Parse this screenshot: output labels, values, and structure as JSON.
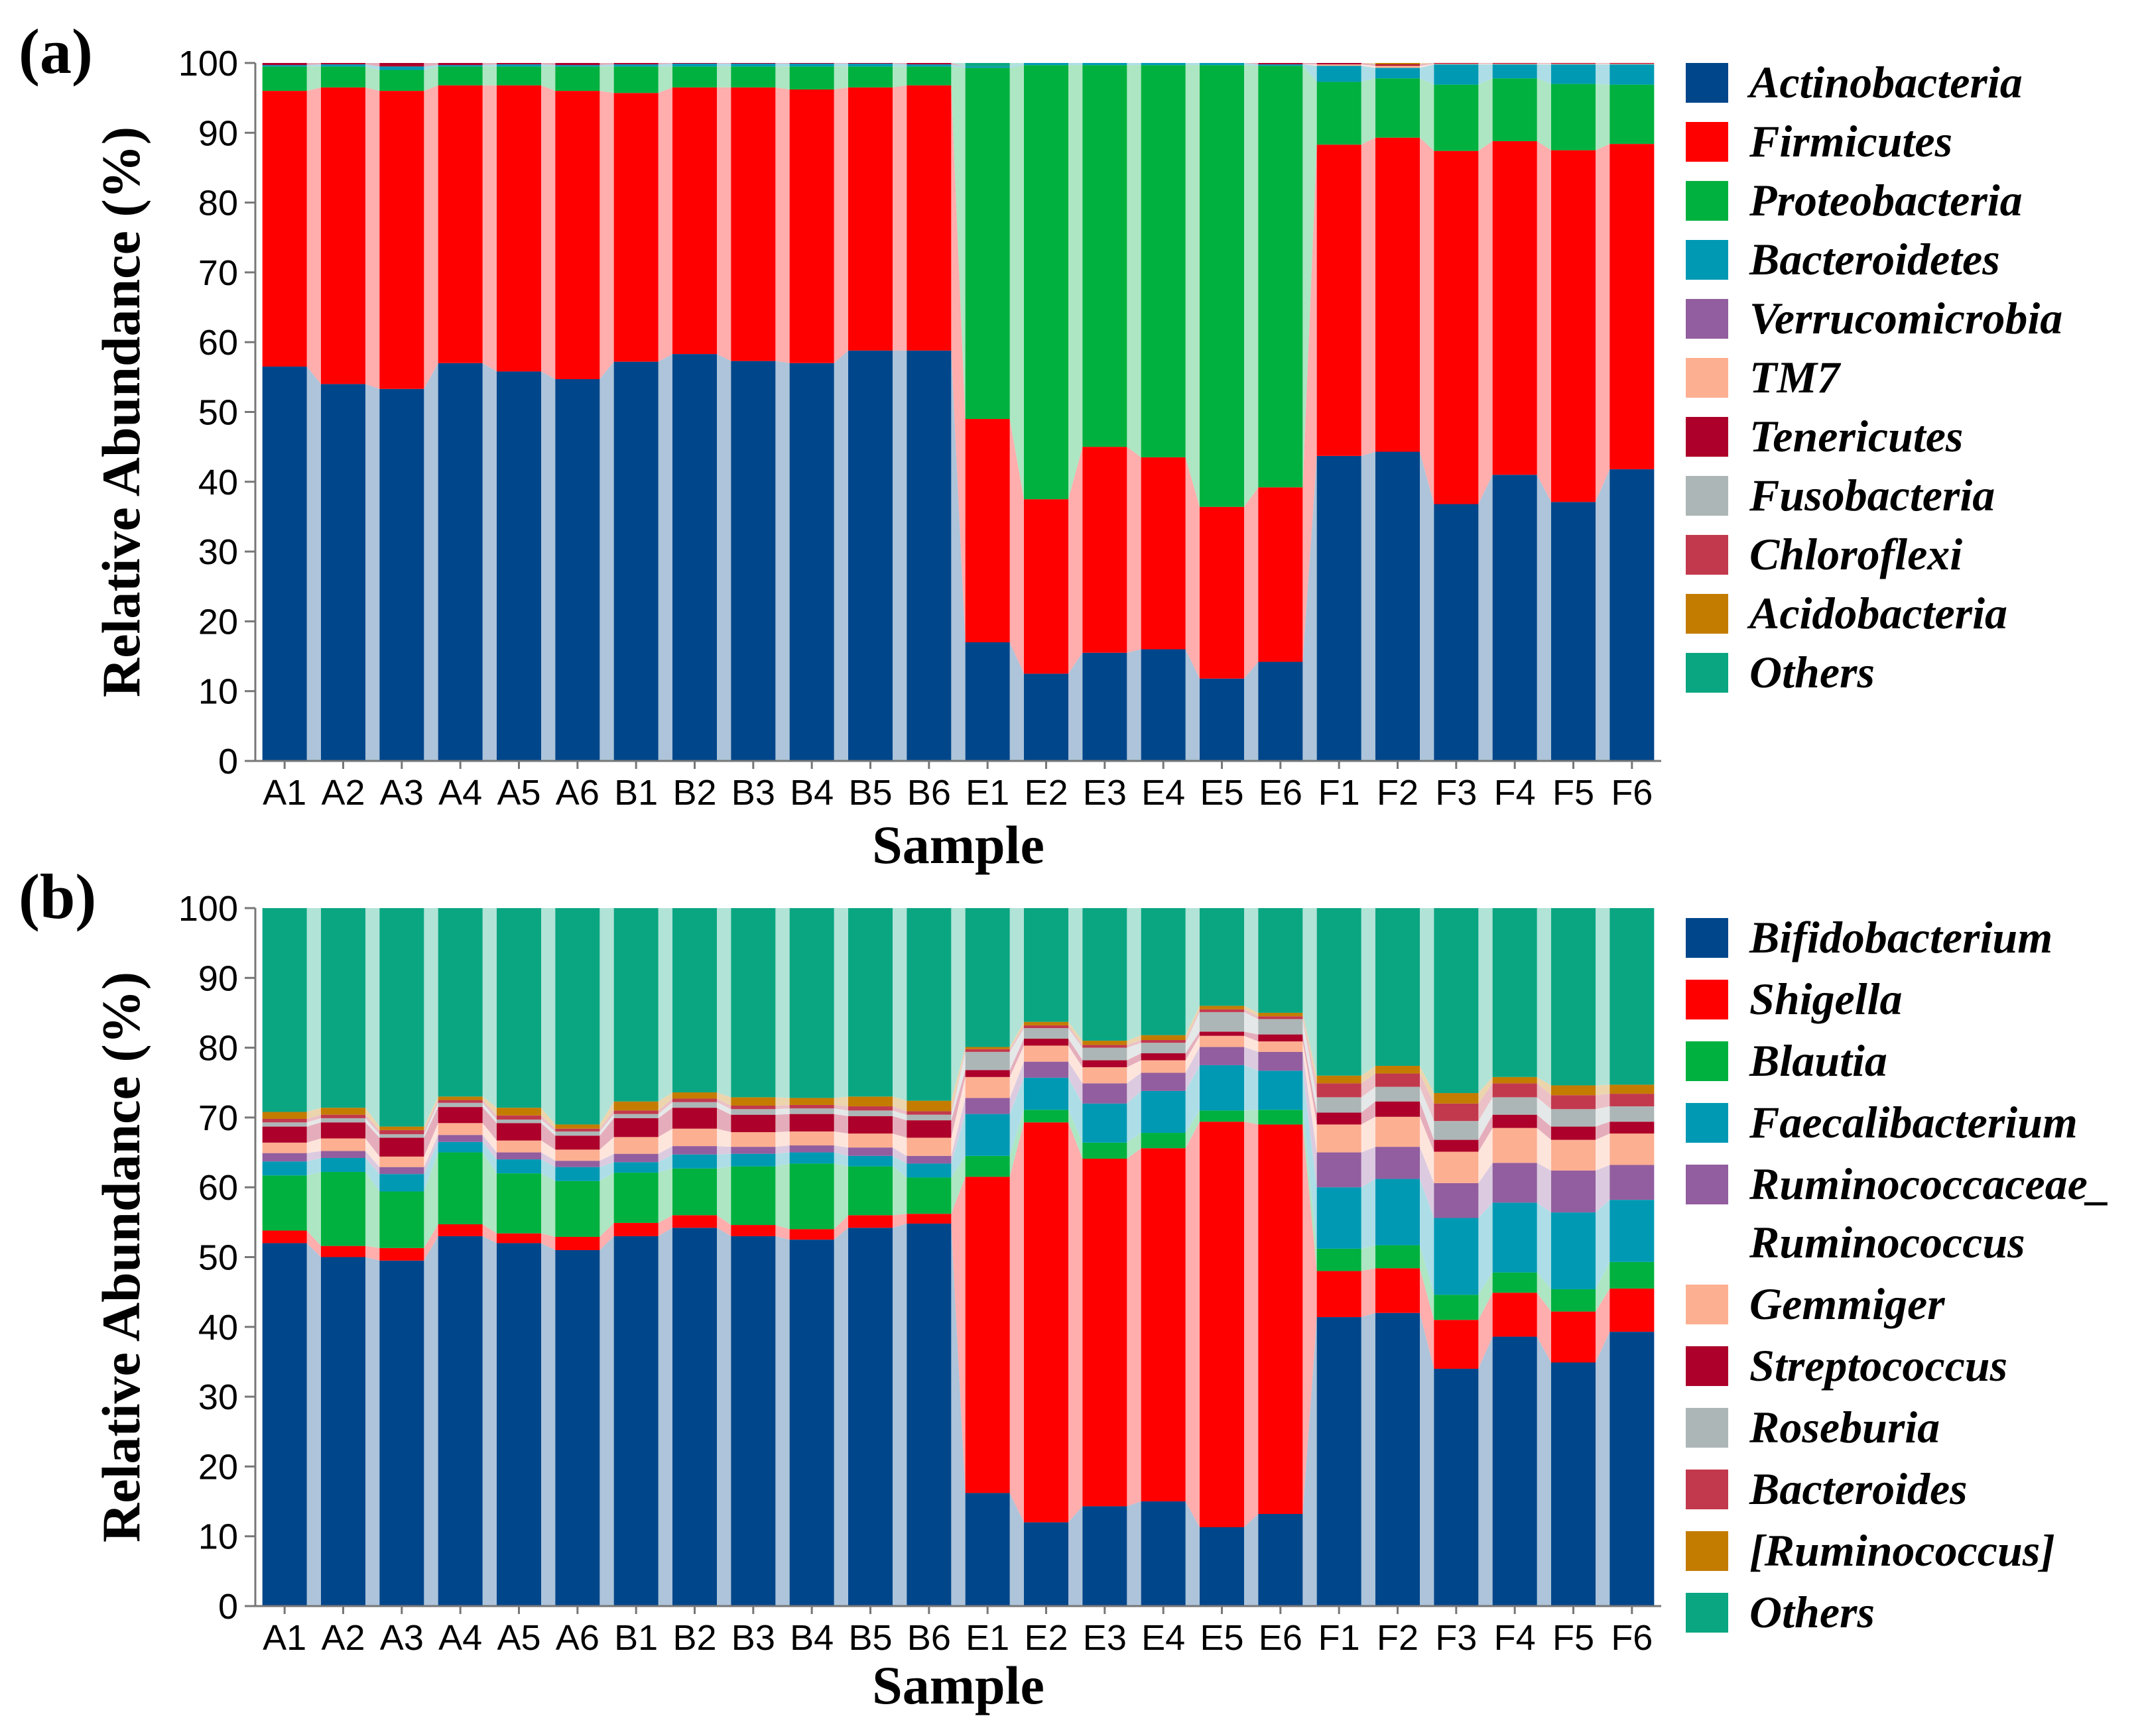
{
  "chart_data": [
    {
      "type": "bar",
      "panel": "(a)",
      "xlabel": "Sample",
      "ylabel": "Relative Abundance (%)",
      "ylim": [
        0,
        100
      ],
      "yticks": [
        "0",
        "10",
        "20",
        "30",
        "40",
        "50",
        "60",
        "70",
        "80",
        "90",
        "100"
      ],
      "categories": [
        "A1",
        "A2",
        "A3",
        "A4",
        "A5",
        "A6",
        "B1",
        "B2",
        "B3",
        "B4",
        "B5",
        "B6",
        "E1",
        "E2",
        "E3",
        "E4",
        "E5",
        "E6",
        "F1",
        "F2",
        "F3",
        "F4",
        "F5",
        "F6"
      ],
      "legend_position": "right",
      "series": [
        {
          "name": "Actinobacteria",
          "color": "#00468b",
          "values": [
            56.5,
            54,
            53.3,
            57,
            55.8,
            54.7,
            57.2,
            58.3,
            57.3,
            57,
            58.8,
            58.8,
            17,
            12.5,
            15.5,
            16,
            11.8,
            14.2,
            43.7,
            44.3,
            36.8,
            41,
            37.1,
            41.8
          ]
        },
        {
          "name": "Firmicutes",
          "color": "#ff0000",
          "values": [
            39.5,
            42.5,
            42.7,
            39.8,
            41,
            41.3,
            38.5,
            38.2,
            39.2,
            39.2,
            37.7,
            38,
            32,
            25,
            29.5,
            27.5,
            24.6,
            25,
            44.6,
            45,
            50.6,
            47.8,
            50.4,
            46.6
          ]
        },
        {
          "name": "Proteobacteria",
          "color": "#00b13f",
          "values": [
            3.5,
            3,
            3,
            2.7,
            2.7,
            3.5,
            3.8,
            3,
            3,
            3.3,
            3,
            2.7,
            50.3,
            62.2,
            54.7,
            56.2,
            63.3,
            60.4,
            9,
            8.5,
            9.5,
            9,
            9.5,
            8.5
          ]
        },
        {
          "name": "Bacteroidetes",
          "color": "#0099b4",
          "values": [
            0.2,
            0.3,
            0.5,
            0.2,
            0.3,
            0.2,
            0.3,
            0.4,
            0.4,
            0.4,
            0.4,
            0.3,
            0.2,
            0.3,
            0.3,
            0.3,
            0.3,
            0.2,
            2.3,
            1.5,
            2.9,
            2,
            2.8,
            2.9
          ]
        },
        {
          "name": "Verrucomicrobia",
          "color": "#925e9f",
          "values": [
            0,
            0,
            0,
            0,
            0,
            0,
            0,
            0,
            0,
            0,
            0,
            0,
            0,
            0,
            0,
            0,
            0,
            0,
            0,
            0,
            0,
            0,
            0,
            0
          ]
        },
        {
          "name": "TM7",
          "color": "#fdaf91",
          "values": [
            0,
            0,
            0,
            0,
            0,
            0,
            0,
            0,
            0,
            0,
            0,
            0,
            0,
            0,
            0,
            0,
            0,
            0,
            0.2,
            0.3,
            0.1,
            0.1,
            0.1,
            0.1
          ]
        },
        {
          "name": "Tenericutes",
          "color": "#ad002a",
          "values": [
            0.3,
            0.2,
            0.5,
            0.3,
            0.2,
            0.3,
            0.2,
            0.1,
            0.1,
            0.1,
            0.1,
            0.2,
            0,
            0,
            0,
            0,
            0,
            0.2,
            0.2,
            0.2,
            0.1,
            0.1,
            0.1,
            0.1
          ]
        },
        {
          "name": "Fusobacteria",
          "color": "#adb6b6",
          "values": [
            0,
            0,
            0,
            0,
            0,
            0,
            0,
            0,
            0,
            0,
            0,
            0,
            0,
            0,
            0,
            0,
            0,
            0,
            0,
            0,
            0,
            0,
            0,
            0
          ]
        },
        {
          "name": "Chloroflexi",
          "color": "#c2394d",
          "values": [
            0,
            0,
            0,
            0,
            0,
            0,
            0,
            0,
            0,
            0,
            0,
            0,
            0,
            0,
            0,
            0,
            0,
            0,
            0,
            0,
            0,
            0,
            0,
            0
          ]
        },
        {
          "name": "Acidobacteria",
          "color": "#c47c00",
          "values": [
            0,
            0,
            0,
            0,
            0,
            0,
            0,
            0,
            0,
            0,
            0,
            0,
            0,
            0,
            0,
            0,
            0,
            0,
            0,
            0.2,
            0,
            0,
            0,
            0
          ]
        },
        {
          "name": "Others",
          "color": "#0aa682",
          "values": [
            0,
            0,
            0,
            0,
            0,
            0,
            0,
            0,
            0,
            0,
            0,
            0,
            0.5,
            0,
            0,
            0,
            0,
            0,
            0,
            0,
            0,
            0,
            0,
            0
          ]
        }
      ]
    },
    {
      "type": "bar",
      "panel": "(b)",
      "xlabel": "Sample",
      "ylabel": "Relative Abundance (%)",
      "ylim": [
        0,
        100
      ],
      "yticks": [
        "0",
        "10",
        "20",
        "30",
        "40",
        "50",
        "60",
        "70",
        "80",
        "90",
        "100"
      ],
      "categories": [
        "A1",
        "A2",
        "A3",
        "A4",
        "A5",
        "A6",
        "B1",
        "B2",
        "B3",
        "B4",
        "B5",
        "B6",
        "E1",
        "E2",
        "E3",
        "E4",
        "E5",
        "E6",
        "F1",
        "F2",
        "F3",
        "F4",
        "F5",
        "F6"
      ],
      "legend_position": "right",
      "series": [
        {
          "name": "Bifidobacterium",
          "color": "#00468b",
          "values": [
            52,
            50,
            49.5,
            53,
            52,
            51,
            53,
            54.2,
            53,
            52.5,
            54.2,
            54.8,
            16.2,
            12,
            14.3,
            15,
            11.3,
            13.2,
            41.4,
            42,
            34,
            38.6,
            34.9,
            39.3
          ]
        },
        {
          "name": "Shigella",
          "color": "#ff0000",
          "values": [
            1.8,
            1.6,
            1.8,
            1.7,
            1.4,
            1.9,
            1.9,
            1.8,
            1.6,
            1.5,
            1.8,
            1.4,
            45.3,
            57.3,
            49.8,
            50.6,
            58.1,
            55.8,
            6.6,
            6.4,
            7,
            6.3,
            7.3,
            6.2
          ]
        },
        {
          "name": "Blautia",
          "color": "#00b13f",
          "values": [
            7.9,
            10.6,
            8.1,
            10.3,
            8.6,
            8,
            7.2,
            6.7,
            8.4,
            9.4,
            7,
            5.2,
            3,
            1.8,
            2.3,
            2.2,
            1.6,
            2.1,
            3.2,
            3.3,
            3.6,
            2.9,
            3.2,
            3.8
          ]
        },
        {
          "name": "Faecalibacterium",
          "color": "#0099b4",
          "values": [
            2,
            2,
            2.5,
            1.5,
            2,
            2,
            1.5,
            2,
            1.8,
            1.6,
            1.5,
            2,
            6,
            4.6,
            5.6,
            6,
            6.5,
            5.6,
            8.8,
            9.5,
            11,
            10,
            11,
            8.9
          ]
        },
        {
          "name": "Ruminococcaceae_Ruminococcus",
          "color": "#925e9f",
          "values": [
            1.2,
            1,
            1,
            1,
            1,
            0.9,
            1.2,
            1.2,
            1,
            1,
            1.2,
            1.1,
            2.3,
            2.3,
            2.9,
            2.6,
            2.6,
            2.7,
            5,
            4.6,
            5,
            5.7,
            6,
            5
          ]
        },
        {
          "name": "Gemmiger",
          "color": "#fdaf91",
          "values": [
            1.5,
            1.8,
            1.5,
            1.7,
            1.7,
            1.6,
            2.4,
            2.5,
            2.1,
            2,
            2,
            2.6,
            3,
            2.3,
            2.3,
            1.8,
            1.6,
            1.5,
            4,
            4.3,
            4.5,
            5,
            4.4,
            4.5
          ]
        },
        {
          "name": "Streptococcus",
          "color": "#ad002a",
          "values": [
            2.3,
            2.3,
            2.7,
            2.3,
            2.5,
            2,
            2.7,
            3,
            2.5,
            2.5,
            2.5,
            2.5,
            1,
            1,
            1,
            1,
            0.6,
            1,
            1.7,
            2.2,
            1.7,
            1.9,
            1.9,
            1.7
          ]
        },
        {
          "name": "Roseburia",
          "color": "#adb6b6",
          "values": [
            0.6,
            0.6,
            0.5,
            0.6,
            0.5,
            0.6,
            0.6,
            0.8,
            0.8,
            0.8,
            0.8,
            0.8,
            2.6,
            1.5,
            1.8,
            1.5,
            2.8,
            2.2,
            2.2,
            2.1,
            2.7,
            2.5,
            2.5,
            2.2
          ]
        },
        {
          "name": "Bacteroides",
          "color": "#c2394d",
          "values": [
            0.5,
            0.5,
            0.6,
            0.4,
            0.6,
            0.4,
            0.5,
            0.5,
            0.5,
            0.5,
            0.6,
            0.5,
            0.4,
            0.4,
            0.4,
            0.4,
            0.4,
            0.4,
            2,
            1.9,
            2.5,
            2,
            2,
            1.8
          ]
        },
        {
          "name": "[Ruminococcus]",
          "color": "#c47c00",
          "values": [
            1,
            1,
            0.5,
            0.5,
            1.1,
            0.6,
            1.3,
            0.9,
            1.2,
            1,
            1.4,
            1.5,
            0.3,
            0.5,
            0.6,
            0.7,
            0.5,
            0.5,
            1.1,
            1.1,
            1.5,
            0.9,
            1.4,
            1.3
          ]
        },
        {
          "name": "Others",
          "color": "#0aa682",
          "values": [
            29.2,
            28.6,
            31.3,
            27,
            28.6,
            31,
            27.7,
            26.4,
            27.1,
            27.2,
            27,
            27.6,
            19.9,
            16.3,
            19,
            18.2,
            14,
            15,
            24,
            22.6,
            26.5,
            24.2,
            25.4,
            25.3
          ]
        }
      ]
    }
  ]
}
